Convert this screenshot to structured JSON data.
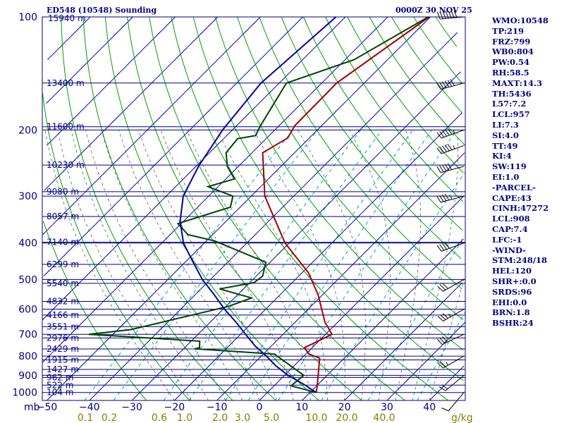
{
  "header": {
    "station": "ED548 (10548) Sounding",
    "time": "0000Z 30 NOV 25"
  },
  "indices": [
    "WMO:10548",
    "TP:219",
    "FRZ:799",
    "WB0:804",
    "PW:0.54",
    "RH:58.5",
    "MAXT:14.3",
    "TH:5436",
    "L57:7.2",
    "LCL:957",
    "LI:7.3",
    "SI:4.0",
    "TT:49",
    "KI:4",
    "SW:119",
    "EI:1.0",
    "-PARCEL-",
    "CAPE:43",
    "CINH:47272",
    "LCL:908",
    "CAP:7.4",
    "LFC:-1",
    "-WIND-",
    "STM:248/18",
    "HEL:120",
    "SHR+:0.0",
    "SRDS:96",
    "EHI:0.0",
    "BRN:1.8",
    "BSHR:24"
  ],
  "chart_data": {
    "type": "line",
    "pressure_levels": [
      100,
      200,
      300,
      400,
      500,
      600,
      700,
      800,
      900,
      1000
    ],
    "pressure_unit": "mb",
    "height_labels": [
      {
        "p": 150,
        "label": "13400 m"
      },
      {
        "p": 196,
        "label": "11600 m"
      },
      {
        "p": 248,
        "label": "10230 m"
      },
      {
        "p": 292,
        "label": "9080 m"
      },
      {
        "p": 340,
        "label": "8057 m"
      },
      {
        "p": 398,
        "label": "7140 m"
      },
      {
        "p": 456,
        "label": "6299 m"
      },
      {
        "p": 512,
        "label": "5540 m"
      },
      {
        "p": 572,
        "label": "4832 m"
      },
      {
        "p": 622,
        "label": "4166 m"
      },
      {
        "p": 668,
        "label": "3551 m"
      },
      {
        "p": 716,
        "label": "2976 m"
      },
      {
        "p": 766,
        "label": "2429 m"
      },
      {
        "p": 819,
        "label": "1915 m"
      },
      {
        "p": 868,
        "label": "1427 m"
      },
      {
        "p": 912,
        "label": "962 m"
      },
      {
        "p": 956,
        "label": "522 m"
      },
      {
        "p": 1000,
        "label": "104 m"
      }
    ],
    "top_height_label": "15940 m",
    "temperature_ticks": [
      -50,
      -40,
      -30,
      -20,
      -10,
      0,
      10,
      20,
      30,
      40
    ],
    "temperature_unit": "mb",
    "mixing_ratio_labels": [
      "0.1",
      "0.2",
      "0.6",
      "1.0",
      "2.0",
      "3.0",
      "5.0",
      "10.0",
      "20.0",
      "40.0",
      "g/kg"
    ],
    "series": [
      {
        "color": "#a00000",
        "points": [
          [
            100,
            -50.3
          ],
          [
            150,
            -56.5
          ],
          [
            195,
            -56.3
          ],
          [
            210,
            -55.1
          ],
          [
            230,
            -57.5
          ],
          [
            300,
            -46.8
          ],
          [
            400,
            -31.0
          ],
          [
            480,
            -18.5
          ],
          [
            550,
            -11.0
          ],
          [
            650,
            -3.0
          ],
          [
            700,
            1.5
          ],
          [
            760,
            -1.8
          ],
          [
            790,
            0.7
          ],
          [
            810,
            4.2
          ],
          [
            950,
            9.8
          ],
          [
            1000,
            11.5
          ]
        ]
      },
      {
        "color": "#004000",
        "points": [
          [
            100,
            -50.5
          ],
          [
            130,
            -57.9
          ],
          [
            150,
            -68.3
          ],
          [
            196,
            -64.3
          ],
          [
            207,
            -63.2
          ],
          [
            211,
            -66.7
          ],
          [
            230,
            -66.1
          ],
          [
            250,
            -62.6
          ],
          [
            270,
            -58.0
          ],
          [
            283,
            -62.4
          ],
          [
            300,
            -54.3
          ],
          [
            321,
            -52.3
          ],
          [
            355,
            -60.8
          ],
          [
            380,
            -55.8
          ],
          [
            395,
            -48.0
          ],
          [
            450,
            -31.0
          ],
          [
            490,
            -28.5
          ],
          [
            510,
            -29.0
          ],
          [
            530,
            -35.6
          ],
          [
            560,
            -26.0
          ],
          [
            590,
            -29.4
          ],
          [
            680,
            -46.9
          ],
          [
            700,
            -55.7
          ],
          [
            730,
            -28.0
          ],
          [
            760,
            -26.5
          ],
          [
            765,
            -27.4
          ],
          [
            790,
            -7.4
          ],
          [
            900,
            4.5
          ],
          [
            960,
            4.0
          ],
          [
            1000,
            11.5
          ]
        ]
      },
      {
        "color": "#0000a0",
        "points": [
          [
            100,
            -72.2
          ],
          [
            150,
            -74.3
          ],
          [
            200,
            -72.3
          ],
          [
            250,
            -69.4
          ],
          [
            300,
            -66.0
          ],
          [
            350,
            -60.8
          ],
          [
            400,
            -54.9
          ],
          [
            450,
            -48.1
          ],
          [
            500,
            -41.9
          ],
          [
            550,
            -35.4
          ],
          [
            600,
            -29.7
          ],
          [
            650,
            -23.9
          ],
          [
            700,
            -18.8
          ],
          [
            750,
            -14.0
          ],
          [
            800,
            -8.8
          ],
          [
            850,
            -4.2
          ],
          [
            900,
            0.8
          ],
          [
            950,
            6.5
          ],
          [
            1000,
            11.5
          ]
        ]
      }
    ],
    "wind_barbs": [
      {
        "p": 100,
        "dir": 265,
        "spd": 70
      },
      {
        "p": 150,
        "dir": 255,
        "spd": 60
      },
      {
        "p": 200,
        "dir": 250,
        "spd": 55
      },
      {
        "p": 220,
        "dir": 250,
        "spd": 55
      },
      {
        "p": 250,
        "dir": 255,
        "spd": 50
      },
      {
        "p": 300,
        "dir": 255,
        "spd": 45
      },
      {
        "p": 400,
        "dir": 250,
        "spd": 40
      },
      {
        "p": 500,
        "dir": 240,
        "spd": 30
      },
      {
        "p": 600,
        "dir": 240,
        "spd": 35
      },
      {
        "p": 700,
        "dir": 245,
        "spd": 30
      },
      {
        "p": 800,
        "dir": 240,
        "spd": 25
      },
      {
        "p": 900,
        "dir": 230,
        "spd": 20
      },
      {
        "p": 1000,
        "dir": 220,
        "spd": 10
      }
    ]
  }
}
